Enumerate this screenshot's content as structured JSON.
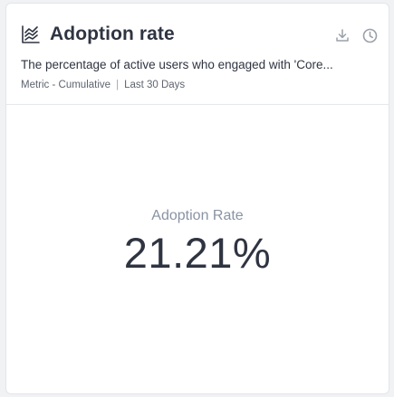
{
  "card": {
    "title": "Adoption rate",
    "title_icon": "line-chart-icon",
    "description": "The percentage of active users who engaged with 'Core...",
    "metric_type": "Metric - Cumulative",
    "separator": "|",
    "time_range": "Last 30 Days",
    "actions": [
      {
        "icon": "download-icon"
      },
      {
        "icon": "clock-icon"
      }
    ]
  },
  "metric": {
    "label": "Adoption Rate",
    "value": "21.21%"
  },
  "colors": {
    "card_background": "#ffffff",
    "page_background": "#f1f2f4",
    "text_primary": "#2f3441",
    "text_secondary": "#5e6470",
    "metric_label": "#8a93a3",
    "icon_gray": "#9aa0aa"
  }
}
